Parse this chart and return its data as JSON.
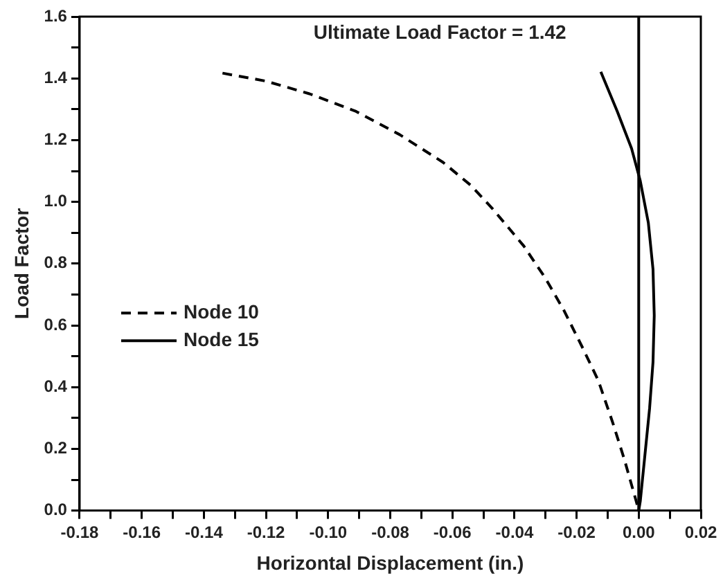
{
  "chart_data": {
    "type": "line",
    "xlabel": "Horizontal Displacement (in.)",
    "ylabel": "Load Factor",
    "annotations": [
      "Ultimate Load Factor = 1.42"
    ],
    "xlim": [
      -0.18,
      0.02
    ],
    "ylim": [
      0,
      1.6
    ],
    "xticks": [
      -0.18,
      {
        "value": -0.17,
        "label": null
      },
      -0.16,
      {
        "value": -0.15,
        "label": null
      },
      -0.14,
      {
        "value": -0.13,
        "label": null
      },
      -0.12,
      {
        "value": -0.11,
        "label": null
      },
      {
        "value": -0.1,
        "label": "-0.10"
      },
      {
        "value": -0.09,
        "label": null
      },
      -0.08,
      {
        "value": -0.07,
        "label": null
      },
      -0.06,
      {
        "value": -0.05,
        "label": null
      },
      -0.04,
      {
        "value": -0.03,
        "label": null
      },
      -0.02,
      {
        "value": -0.01,
        "label": null
      },
      {
        "value": 0,
        "label": "0.00"
      },
      {
        "value": 0.01,
        "label": null
      },
      0.02
    ],
    "yticks": [
      {
        "value": 0,
        "label": "0.0"
      },
      {
        "value": 0.1,
        "label": null
      },
      0.2,
      {
        "value": 0.3,
        "label": null
      },
      0.4,
      {
        "value": 0.5,
        "label": null
      },
      0.6,
      {
        "value": 0.7,
        "label": null
      },
      0.8,
      {
        "value": 0.9,
        "label": null
      },
      {
        "value": 1,
        "label": "1.0"
      },
      {
        "value": 1.1,
        "label": null
      },
      1.2,
      {
        "value": 1.3,
        "label": null
      },
      1.4,
      {
        "value": 1.5,
        "label": null
      },
      1.6
    ],
    "ref_lines": [
      {
        "axis": "x",
        "value": 0,
        "color": "#000000"
      }
    ],
    "legend": "left",
    "grid": false,
    "marker": "none",
    "series": [
      {
        "name": "Node 10",
        "color": "#000000",
        "line_style": "dashed",
        "x": [
          -0.134,
          -0.12,
          -0.106,
          -0.091,
          -0.077,
          -0.063,
          -0.054,
          -0.047,
          -0.037,
          -0.03,
          -0.024,
          -0.018,
          -0.013,
          -0.0084,
          -0.0046,
          -0.0008,
          0
        ],
        "values": [
          1.417,
          1.391,
          1.35,
          1.293,
          1.218,
          1.128,
          1.053,
          0.977,
          0.857,
          0.752,
          0.647,
          0.526,
          0.421,
          0.286,
          0.165,
          0.03,
          0
        ]
      },
      {
        "name": "Node 15",
        "color": "#000000",
        "line_style": "solid",
        "x": [
          -0.0122,
          -0.0069,
          -0.0023,
          0.0005,
          0.0031,
          0.0046,
          0.005,
          0.0046,
          0.0035,
          0.002,
          0.0005,
          0
        ],
        "values": [
          1.421,
          1.293,
          1.173,
          1.068,
          0.932,
          0.782,
          0.632,
          0.481,
          0.331,
          0.18,
          0.03,
          0
        ]
      }
    ]
  }
}
